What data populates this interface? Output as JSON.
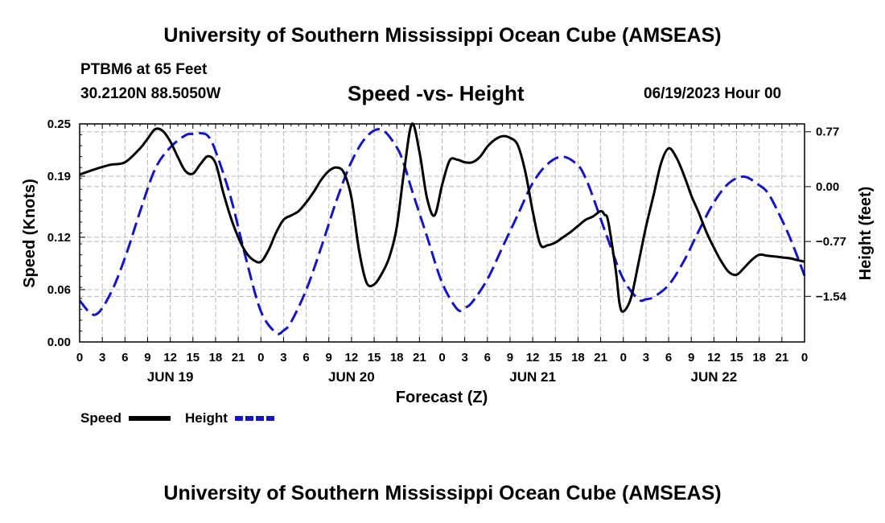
{
  "header": {
    "title": "University of Southern Mississippi Ocean Cube (AMSEAS)",
    "station": "PTBM6 at 65 Feet",
    "coords": "30.2120N  88.5050W",
    "subtitle": "Speed -vs- Height",
    "datestamp": "06/19/2023 Hour 00"
  },
  "footer": {
    "title": "University of Southern Mississippi Ocean Cube (AMSEAS)"
  },
  "chart_data": {
    "type": "line",
    "title": "Speed -vs- Height",
    "xlabel": "Forecast (Z)",
    "ylabel": "Speed (Knots)",
    "y2label": "Height (feet)",
    "xlim": [
      0,
      96
    ],
    "ylim": [
      0,
      0.25
    ],
    "y2lim": [
      -2.18,
      0.88
    ],
    "grid": true,
    "xticks": [
      0,
      3,
      6,
      9,
      12,
      15,
      18,
      21,
      24,
      27,
      30,
      33,
      36,
      39,
      42,
      45,
      48,
      51,
      54,
      57,
      60,
      63,
      66,
      69,
      72,
      75,
      78,
      81,
      84,
      87,
      90,
      93,
      96
    ],
    "xtick_labels": [
      "0",
      "3",
      "6",
      "9",
      "12",
      "15",
      "18",
      "21",
      "0",
      "3",
      "6",
      "9",
      "12",
      "15",
      "18",
      "21",
      "0",
      "3",
      "6",
      "9",
      "12",
      "15",
      "18",
      "21",
      "0",
      "3",
      "6",
      "9",
      "12",
      "15",
      "18",
      "21",
      "0"
    ],
    "day_labels": [
      {
        "label": "JUN 19",
        "hour": 12
      },
      {
        "label": "JUN 20",
        "hour": 36
      },
      {
        "label": "JUN 21",
        "hour": 60
      },
      {
        "label": "JUN 22",
        "hour": 84
      }
    ],
    "yticks": [
      0.0,
      0.06,
      0.12,
      0.19,
      0.25
    ],
    "ytick_labels": [
      "0.00",
      "0.06",
      "0.12",
      "0.19",
      "0.25"
    ],
    "y2ticks": [
      0.77,
      0.0,
      -0.77,
      -1.54
    ],
    "y2tick_labels": [
      "0.77",
      "0.00",
      "−0.77",
      "−1.54"
    ],
    "series": [
      {
        "name": "Speed",
        "axis": "left",
        "color": "#000000",
        "style": "solid",
        "x": [
          0,
          2,
          4,
          6,
          8,
          9,
          10,
          11,
          12,
          13,
          14,
          15,
          16,
          17,
          18,
          19,
          20,
          21,
          22,
          23,
          24,
          25,
          26,
          27,
          28,
          29,
          30,
          31,
          32,
          33,
          34,
          35,
          36,
          37,
          38,
          39,
          40,
          41,
          42,
          43,
          44,
          45,
          46,
          47,
          48,
          49,
          50,
          51,
          52,
          53,
          54,
          55,
          56,
          57,
          58,
          59,
          60,
          61,
          62,
          63,
          64,
          65,
          66,
          67,
          68,
          69,
          69.5,
          70,
          71,
          71.5,
          72,
          73,
          74,
          75,
          76,
          77,
          78,
          79,
          80,
          81,
          82,
          83,
          84,
          85,
          86,
          87,
          88,
          89,
          90,
          91,
          92,
          93,
          94,
          95,
          96
        ],
        "y": [
          0.192,
          0.198,
          0.203,
          0.206,
          0.222,
          0.233,
          0.244,
          0.242,
          0.23,
          0.212,
          0.196,
          0.193,
          0.204,
          0.213,
          0.205,
          0.172,
          0.143,
          0.12,
          0.103,
          0.094,
          0.092,
          0.105,
          0.125,
          0.14,
          0.145,
          0.15,
          0.16,
          0.172,
          0.186,
          0.196,
          0.2,
          0.194,
          0.165,
          0.105,
          0.068,
          0.066,
          0.078,
          0.097,
          0.132,
          0.198,
          0.25,
          0.218,
          0.165,
          0.145,
          0.18,
          0.208,
          0.209,
          0.206,
          0.206,
          0.212,
          0.224,
          0.232,
          0.236,
          0.234,
          0.226,
          0.196,
          0.15,
          0.112,
          0.111,
          0.114,
          0.12,
          0.126,
          0.133,
          0.14,
          0.144,
          0.15,
          0.146,
          0.138,
          0.082,
          0.044,
          0.035,
          0.05,
          0.09,
          0.132,
          0.168,
          0.205,
          0.222,
          0.212,
          0.192,
          0.168,
          0.148,
          0.126,
          0.108,
          0.092,
          0.08,
          0.077,
          0.085,
          0.094,
          0.1,
          0.099,
          0.098,
          0.097,
          0.096,
          0.094,
          0.092
        ]
      },
      {
        "name": "Height",
        "axis": "right",
        "color": "#1515c8",
        "style": "dashed",
        "x": [
          0,
          2,
          4,
          6,
          8,
          10,
          12,
          14,
          15,
          16,
          17,
          18,
          20,
          22,
          24,
          26,
          27,
          28,
          30,
          32,
          34,
          36,
          38,
          40,
          42,
          43,
          44,
          46,
          48,
          50,
          51,
          52,
          54,
          56,
          58,
          60,
          62,
          64,
          66,
          67,
          68,
          70,
          72,
          74,
          75,
          76,
          78,
          80,
          82,
          84,
          86,
          88,
          90,
          91,
          92,
          94,
          96
        ],
        "y": [
          -1.6,
          -1.8,
          -1.52,
          -1.0,
          -0.35,
          0.25,
          0.55,
          0.72,
          0.74,
          0.75,
          0.71,
          0.5,
          -0.15,
          -1.0,
          -1.75,
          -2.05,
          -2.02,
          -1.9,
          -1.45,
          -0.85,
          -0.2,
          0.35,
          0.7,
          0.8,
          0.55,
          0.3,
          -0.05,
          -0.7,
          -1.35,
          -1.72,
          -1.7,
          -1.62,
          -1.3,
          -0.85,
          -0.4,
          0.05,
          0.32,
          0.42,
          0.3,
          0.12,
          -0.15,
          -0.75,
          -1.3,
          -1.58,
          -1.58,
          -1.55,
          -1.38,
          -1.05,
          -0.62,
          -0.22,
          0.05,
          0.14,
          0.02,
          -0.07,
          -0.25,
          -0.7,
          -1.25
        ]
      }
    ]
  },
  "legend": {
    "items": [
      {
        "label": "Speed",
        "color": "#000000",
        "style": "solid"
      },
      {
        "label": "Height",
        "color": "#1515c8",
        "style": "dashed"
      }
    ]
  }
}
